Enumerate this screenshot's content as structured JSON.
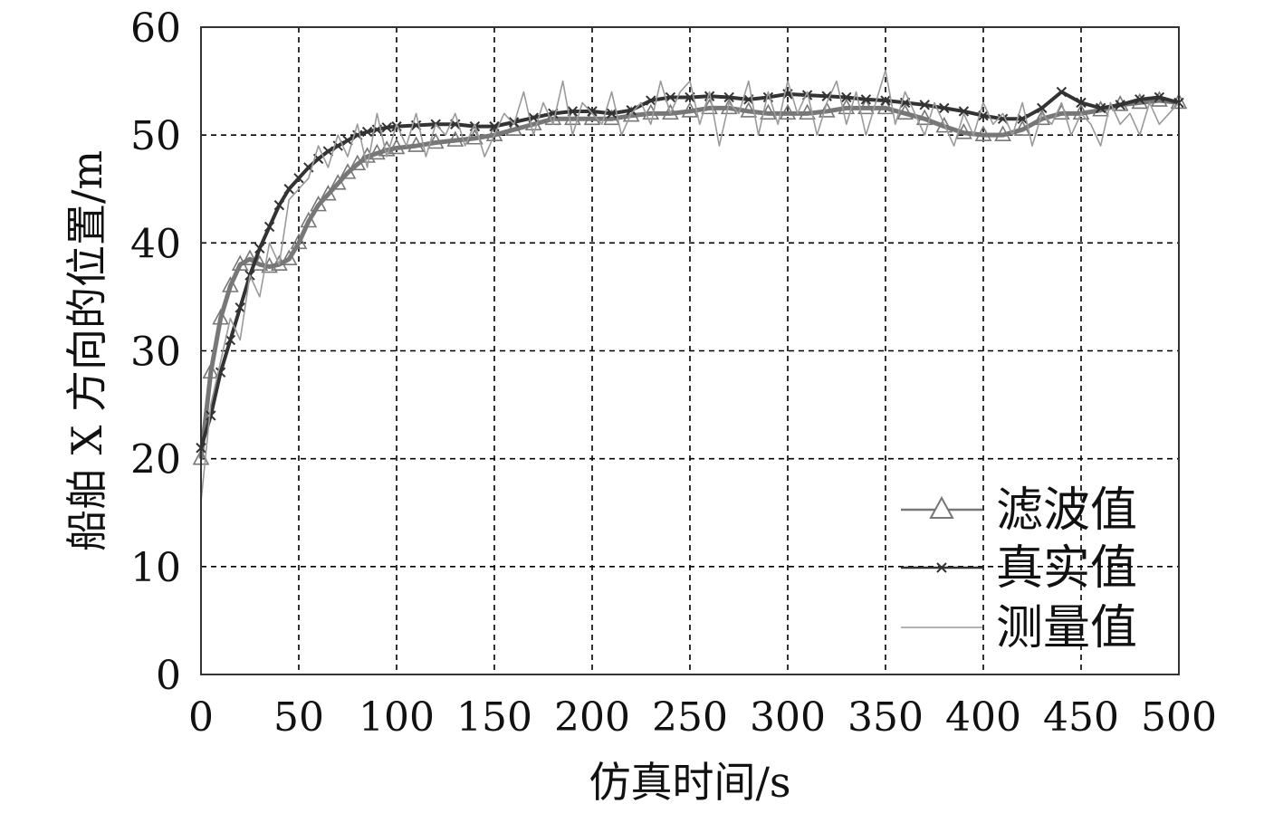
{
  "chart_data": {
    "type": "line",
    "title": "",
    "xlabel": "仿真时间/s",
    "ylabel": "船舶 X 方向的位置/m",
    "xlim": [
      0,
      500
    ],
    "ylim": [
      0,
      60
    ],
    "xticks": [
      "0",
      "50",
      "100",
      "150",
      "200",
      "250",
      "300",
      "350",
      "400",
      "450",
      "500"
    ],
    "yticks": [
      "0",
      "10",
      "20",
      "30",
      "40",
      "50",
      "60"
    ],
    "grid": true,
    "legend_position": "bottom-right",
    "series": [
      {
        "name": "滤波值",
        "marker": "triangle",
        "color": "#777777",
        "x": [
          0,
          5,
          10,
          15,
          20,
          25,
          30,
          35,
          40,
          45,
          50,
          55,
          60,
          65,
          70,
          75,
          80,
          85,
          90,
          95,
          100,
          110,
          120,
          130,
          140,
          150,
          160,
          170,
          180,
          190,
          200,
          210,
          220,
          230,
          240,
          250,
          260,
          270,
          280,
          290,
          300,
          310,
          320,
          330,
          340,
          350,
          360,
          370,
          380,
          390,
          400,
          410,
          420,
          430,
          440,
          450,
          460,
          470,
          480,
          490,
          500
        ],
        "values": [
          20,
          28,
          33,
          36,
          38,
          38.5,
          38,
          37.8,
          38,
          38.5,
          40,
          42,
          43.5,
          44.5,
          45.5,
          46.5,
          47.3,
          48,
          48.3,
          48.6,
          48.8,
          49,
          49.3,
          49.5,
          49.7,
          50,
          50.5,
          51,
          51.5,
          51.5,
          51.5,
          51.5,
          51.8,
          52,
          52,
          52.2,
          52.5,
          52.5,
          52.2,
          52,
          52,
          52,
          52.2,
          52.5,
          52.5,
          52.5,
          52,
          51.5,
          50.8,
          50.2,
          50,
          50,
          50.5,
          51.5,
          52,
          52,
          52.3,
          52.8,
          53,
          53.2,
          53
        ]
      },
      {
        "name": "真实值",
        "marker": "x",
        "color": "#333333",
        "x": [
          0,
          5,
          10,
          15,
          20,
          25,
          30,
          35,
          40,
          45,
          50,
          55,
          60,
          65,
          70,
          75,
          80,
          85,
          90,
          95,
          100,
          110,
          120,
          130,
          140,
          150,
          160,
          170,
          180,
          190,
          200,
          210,
          220,
          230,
          240,
          250,
          260,
          270,
          280,
          290,
          300,
          310,
          320,
          330,
          340,
          350,
          360,
          370,
          380,
          390,
          400,
          410,
          420,
          430,
          440,
          450,
          460,
          470,
          480,
          490,
          500
        ],
        "values": [
          21,
          24,
          28,
          31,
          34,
          37,
          39.5,
          41.5,
          43.5,
          45,
          46,
          47,
          47.8,
          48.5,
          49,
          49.5,
          50,
          50.3,
          50.5,
          50.7,
          50.8,
          50.9,
          51,
          51,
          50.8,
          50.8,
          51.2,
          51.6,
          52,
          52.2,
          52.2,
          52,
          52.3,
          53.2,
          53.5,
          53.5,
          53.6,
          53.5,
          53.3,
          53.5,
          53.8,
          53.7,
          53.6,
          53.5,
          53.3,
          53.2,
          53,
          52.8,
          52.5,
          52.2,
          51.8,
          51.5,
          51.5,
          52.5,
          54,
          53,
          52.5,
          52.8,
          53.3,
          53.5,
          53
        ]
      },
      {
        "name": "测量值",
        "marker": "none",
        "color": "#9a9a9a",
        "x": [
          0,
          5,
          10,
          15,
          20,
          25,
          30,
          35,
          40,
          45,
          50,
          55,
          60,
          65,
          70,
          75,
          80,
          85,
          90,
          95,
          100,
          105,
          110,
          115,
          120,
          125,
          130,
          135,
          140,
          145,
          150,
          155,
          160,
          165,
          170,
          175,
          180,
          185,
          190,
          195,
          200,
          205,
          210,
          215,
          220,
          225,
          230,
          235,
          240,
          245,
          250,
          255,
          260,
          265,
          270,
          275,
          280,
          285,
          290,
          295,
          300,
          305,
          310,
          315,
          320,
          325,
          330,
          335,
          340,
          345,
          350,
          355,
          360,
          365,
          370,
          375,
          380,
          385,
          390,
          395,
          400,
          405,
          410,
          415,
          420,
          425,
          430,
          435,
          440,
          445,
          450,
          455,
          460,
          465,
          470,
          475,
          480,
          485,
          490,
          495,
          500
        ],
        "values": [
          16,
          25,
          29,
          33,
          31,
          37,
          35,
          40,
          38,
          44,
          45,
          46,
          49,
          47,
          50,
          48,
          51,
          47,
          52,
          48,
          51,
          49,
          52,
          48,
          51,
          50,
          52,
          49,
          51,
          48,
          50,
          52,
          51,
          54,
          50,
          53,
          51,
          55,
          50,
          53,
          52,
          51,
          54,
          50,
          52,
          53,
          51,
          55,
          52,
          54,
          55,
          51,
          54,
          49,
          53,
          52,
          55,
          50,
          54,
          51,
          55,
          52,
          54,
          50,
          53,
          55,
          51,
          54,
          50,
          53,
          56,
          51,
          54,
          52,
          50,
          53,
          51,
          49,
          52,
          50,
          53,
          51,
          52,
          50,
          53,
          49,
          52,
          51,
          53,
          50,
          52,
          51,
          49,
          53,
          51,
          52,
          50,
          53,
          51,
          52,
          53
        ]
      }
    ]
  }
}
